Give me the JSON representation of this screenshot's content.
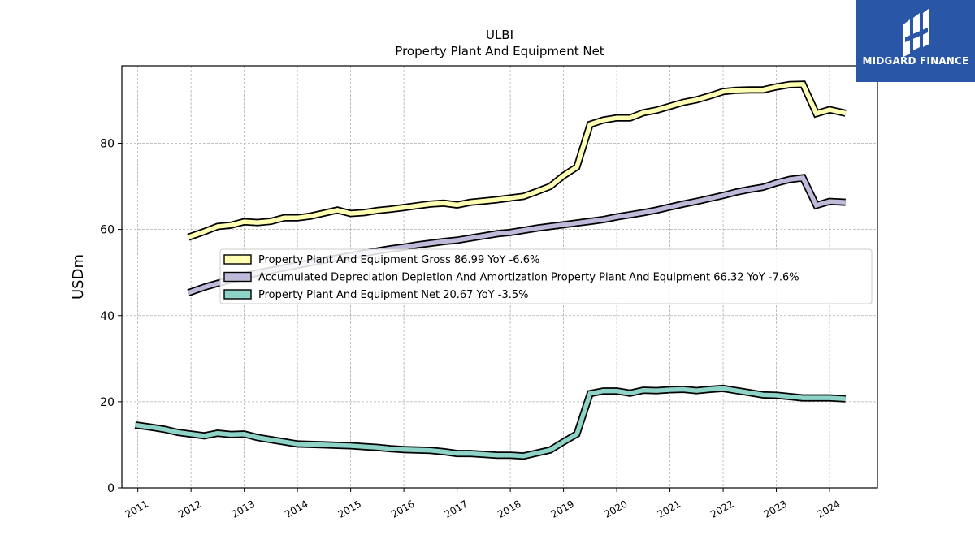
{
  "brand": {
    "name": "MIDGARD FINANCE",
    "color": "#2a56a8"
  },
  "chart_data": {
    "type": "line",
    "title": "ULBI",
    "subtitle": "Property Plant And Equipment Net",
    "ylabel": "USDm",
    "xlabel": "",
    "xlim": [
      2010.7,
      2024.9
    ],
    "ylim": [
      0,
      98
    ],
    "yticks": [
      0,
      20,
      40,
      60,
      80
    ],
    "xticks": [
      2011,
      2012,
      2013,
      2014,
      2015,
      2016,
      2017,
      2018,
      2019,
      2020,
      2021,
      2022,
      2023,
      2024
    ],
    "grid": true,
    "legend_position": "center",
    "series": [
      {
        "name": "Property Plant And Equipment Gross  86.99 YoY -6.6%",
        "color": "#ffffb3",
        "points": [
          [
            2011.95,
            58.2
          ],
          [
            2012.25,
            59.5
          ],
          [
            2012.5,
            60.7
          ],
          [
            2012.75,
            61.0
          ],
          [
            2013.0,
            61.8
          ],
          [
            2013.25,
            61.6
          ],
          [
            2013.5,
            61.9
          ],
          [
            2013.75,
            62.7
          ],
          [
            2014.0,
            62.7
          ],
          [
            2014.25,
            63.1
          ],
          [
            2014.5,
            63.8
          ],
          [
            2014.75,
            64.5
          ],
          [
            2015.0,
            63.7
          ],
          [
            2015.25,
            63.9
          ],
          [
            2015.5,
            64.4
          ],
          [
            2015.75,
            64.7
          ],
          [
            2016.0,
            65.1
          ],
          [
            2016.25,
            65.5
          ],
          [
            2016.5,
            65.9
          ],
          [
            2016.75,
            66.1
          ],
          [
            2017.0,
            65.7
          ],
          [
            2017.25,
            66.3
          ],
          [
            2017.5,
            66.6
          ],
          [
            2017.75,
            66.9
          ],
          [
            2018.0,
            67.3
          ],
          [
            2018.25,
            67.7
          ],
          [
            2018.5,
            68.8
          ],
          [
            2018.75,
            70.0
          ],
          [
            2019.0,
            72.5
          ],
          [
            2019.25,
            74.5
          ],
          [
            2019.5,
            84.4
          ],
          [
            2019.75,
            85.4
          ],
          [
            2020.0,
            85.9
          ],
          [
            2020.25,
            85.9
          ],
          [
            2020.5,
            87.1
          ],
          [
            2020.75,
            87.7
          ],
          [
            2021.0,
            88.6
          ],
          [
            2021.25,
            89.5
          ],
          [
            2021.5,
            90.1
          ],
          [
            2021.75,
            91.0
          ],
          [
            2022.0,
            92.0
          ],
          [
            2022.25,
            92.3
          ],
          [
            2022.5,
            92.4
          ],
          [
            2022.75,
            92.4
          ],
          [
            2023.0,
            93.1
          ],
          [
            2023.25,
            93.6
          ],
          [
            2023.5,
            93.7
          ],
          [
            2023.75,
            86.9
          ],
          [
            2024.0,
            87.8
          ],
          [
            2024.3,
            86.99
          ]
        ]
      },
      {
        "name": "Accumulated Depreciation Depletion And Amortization Property Plant And Equipment  66.32 YoY -7.6%",
        "color": "#bebada",
        "points": [
          [
            2011.95,
            45.3
          ],
          [
            2012.25,
            46.6
          ],
          [
            2012.5,
            47.5
          ],
          [
            2012.75,
            48.3
          ],
          [
            2013.0,
            49.2
          ],
          [
            2013.25,
            49.9
          ],
          [
            2013.5,
            50.5
          ],
          [
            2013.75,
            51.1
          ],
          [
            2014.0,
            51.7
          ],
          [
            2014.25,
            52.3
          ],
          [
            2014.5,
            52.9
          ],
          [
            2014.75,
            53.4
          ],
          [
            2015.0,
            53.9
          ],
          [
            2015.25,
            54.5
          ],
          [
            2015.5,
            55.0
          ],
          [
            2015.75,
            55.5
          ],
          [
            2016.0,
            55.9
          ],
          [
            2016.25,
            56.4
          ],
          [
            2016.5,
            56.8
          ],
          [
            2016.75,
            57.2
          ],
          [
            2017.0,
            57.5
          ],
          [
            2017.25,
            58.0
          ],
          [
            2017.5,
            58.5
          ],
          [
            2017.75,
            59.0
          ],
          [
            2018.0,
            59.3
          ],
          [
            2018.25,
            59.8
          ],
          [
            2018.5,
            60.3
          ],
          [
            2018.75,
            60.7
          ],
          [
            2019.0,
            61.1
          ],
          [
            2019.25,
            61.5
          ],
          [
            2019.5,
            61.9
          ],
          [
            2019.75,
            62.3
          ],
          [
            2020.0,
            62.9
          ],
          [
            2020.25,
            63.4
          ],
          [
            2020.5,
            63.9
          ],
          [
            2020.75,
            64.5
          ],
          [
            2021.0,
            65.2
          ],
          [
            2021.25,
            65.9
          ],
          [
            2021.5,
            66.5
          ],
          [
            2021.75,
            67.2
          ],
          [
            2022.0,
            67.9
          ],
          [
            2022.25,
            68.7
          ],
          [
            2022.5,
            69.3
          ],
          [
            2022.75,
            69.8
          ],
          [
            2023.0,
            70.8
          ],
          [
            2023.25,
            71.6
          ],
          [
            2023.5,
            72.0
          ],
          [
            2023.75,
            65.6
          ],
          [
            2024.0,
            66.5
          ],
          [
            2024.3,
            66.32
          ]
        ]
      },
      {
        "name": "Property Plant And Equipment Net  20.67 YoY -3.5%",
        "color": "#8dd3c7",
        "points": [
          [
            2010.95,
            14.6
          ],
          [
            2011.25,
            14.1
          ],
          [
            2011.5,
            13.6
          ],
          [
            2011.75,
            12.9
          ],
          [
            2012.0,
            12.5
          ],
          [
            2012.25,
            12.1
          ],
          [
            2012.5,
            12.7
          ],
          [
            2012.75,
            12.4
          ],
          [
            2013.0,
            12.5
          ],
          [
            2013.25,
            11.7
          ],
          [
            2013.5,
            11.2
          ],
          [
            2013.75,
            10.7
          ],
          [
            2014.0,
            10.2
          ],
          [
            2014.25,
            10.1
          ],
          [
            2014.5,
            10.0
          ],
          [
            2014.75,
            9.9
          ],
          [
            2015.0,
            9.8
          ],
          [
            2015.25,
            9.6
          ],
          [
            2015.5,
            9.4
          ],
          [
            2015.75,
            9.1
          ],
          [
            2016.0,
            8.9
          ],
          [
            2016.25,
            8.8
          ],
          [
            2016.5,
            8.7
          ],
          [
            2016.75,
            8.4
          ],
          [
            2017.0,
            8.0
          ],
          [
            2017.25,
            8.0
          ],
          [
            2017.5,
            7.8
          ],
          [
            2017.75,
            7.6
          ],
          [
            2018.0,
            7.6
          ],
          [
            2018.25,
            7.4
          ],
          [
            2018.5,
            8.1
          ],
          [
            2018.75,
            8.8
          ],
          [
            2019.0,
            10.7
          ],
          [
            2019.25,
            12.5
          ],
          [
            2019.5,
            21.9
          ],
          [
            2019.75,
            22.5
          ],
          [
            2020.0,
            22.5
          ],
          [
            2020.25,
            22.0
          ],
          [
            2020.5,
            22.7
          ],
          [
            2020.75,
            22.6
          ],
          [
            2021.0,
            22.8
          ],
          [
            2021.25,
            22.9
          ],
          [
            2021.5,
            22.6
          ],
          [
            2021.75,
            22.9
          ],
          [
            2022.0,
            23.1
          ],
          [
            2022.25,
            22.6
          ],
          [
            2022.5,
            22.1
          ],
          [
            2022.75,
            21.6
          ],
          [
            2023.0,
            21.5
          ],
          [
            2023.25,
            21.2
          ],
          [
            2023.5,
            20.9
          ],
          [
            2023.75,
            20.9
          ],
          [
            2024.0,
            20.9
          ],
          [
            2024.3,
            20.67
          ]
        ]
      }
    ]
  }
}
